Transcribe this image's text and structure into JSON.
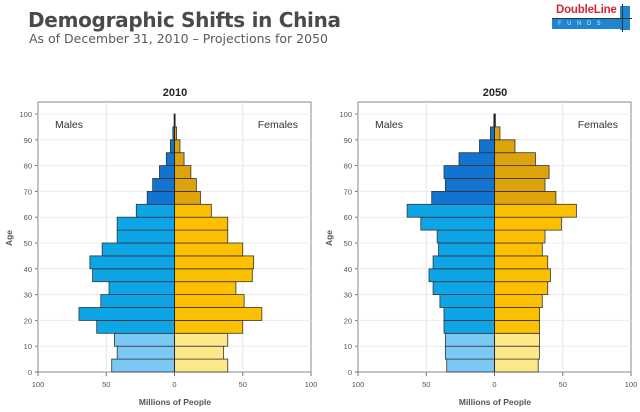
{
  "header": {
    "title": "Demographic Shifts in China",
    "subtitle": "As of December 31, 2010 – Projections for 2050"
  },
  "logo": {
    "brand": "DoubleLine",
    "registered": "®",
    "tagline": "FUNDS",
    "colors": {
      "brand_red": "#d2283a",
      "brand_blue": "#1e86d0"
    }
  },
  "colors": {
    "male_young": "#7cc8f4",
    "male_working": "#0ea5e6",
    "male_old": "#1273d1",
    "female_young": "#fde98a",
    "female_working": "#fdc000",
    "female_old": "#dca40a",
    "outline": "#333333"
  },
  "chart_data": [
    {
      "type": "bar",
      "subtype": "population-pyramid",
      "title": "2010",
      "xlabel": "Millions of People",
      "ylabel": "Age",
      "xlim": [
        -100,
        100
      ],
      "ylim": [
        0,
        100
      ],
      "xticks": [
        100,
        50,
        0,
        50,
        100
      ],
      "yticks": [
        0,
        10,
        20,
        30,
        40,
        50,
        60,
        70,
        80,
        90,
        100
      ],
      "grid": true,
      "left_label": "Males",
      "right_label": "Females",
      "age_bands": [
        "0-4",
        "5-9",
        "10-14",
        "15-19",
        "20-24",
        "25-29",
        "30-34",
        "35-39",
        "40-44",
        "45-49",
        "50-54",
        "55-59",
        "60-64",
        "65-69",
        "70-74",
        "75-79",
        "80-84",
        "85-89",
        "90-94",
        "95-99"
      ],
      "series": [
        {
          "name": "Males",
          "values": [
            46,
            42,
            44,
            57,
            70,
            54,
            48,
            60,
            62,
            53,
            42,
            42,
            28,
            20,
            16,
            11,
            6,
            3,
            1.2,
            0.3
          ]
        },
        {
          "name": "Females",
          "values": [
            39,
            36,
            39,
            50,
            64,
            51,
            45,
            57,
            58,
            50,
            39,
            39,
            27,
            19,
            16,
            12,
            7,
            4,
            1.5,
            0.5
          ]
        }
      ]
    },
    {
      "type": "bar",
      "subtype": "population-pyramid",
      "title": "2050",
      "xlabel": "Millions of People",
      "ylabel": "Age",
      "xlim": [
        -100,
        100
      ],
      "ylim": [
        0,
        100
      ],
      "xticks": [
        100,
        50,
        0,
        50,
        100
      ],
      "yticks": [
        0,
        10,
        20,
        30,
        40,
        50,
        60,
        70,
        80,
        90,
        100
      ],
      "grid": true,
      "left_label": "Males",
      "right_label": "Females",
      "age_bands": [
        "0-4",
        "5-9",
        "10-14",
        "15-19",
        "20-24",
        "25-29",
        "30-34",
        "35-39",
        "40-44",
        "45-49",
        "50-54",
        "55-59",
        "60-64",
        "65-69",
        "70-74",
        "75-79",
        "80-84",
        "85-89",
        "90-94",
        "95-99"
      ],
      "series": [
        {
          "name": "Males",
          "values": [
            35,
            36,
            36,
            37,
            37,
            40,
            45,
            48,
            45,
            41,
            42,
            54,
            64,
            46,
            36,
            37,
            26,
            11,
            3,
            0.5
          ]
        },
        {
          "name": "Females",
          "values": [
            32,
            33,
            33,
            33,
            33,
            35,
            39,
            41,
            39,
            35,
            37,
            49,
            60,
            45,
            37,
            40,
            30,
            15,
            4,
            0.7
          ]
        }
      ]
    }
  ]
}
